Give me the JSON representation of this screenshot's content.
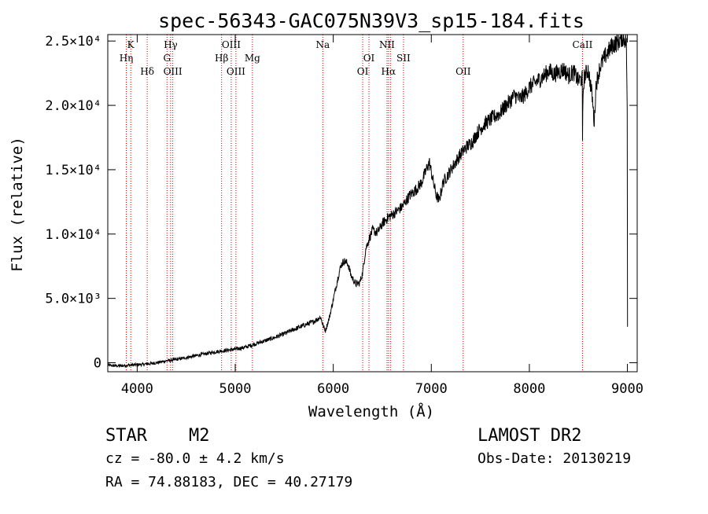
{
  "chart_data": {
    "type": "line",
    "title": "spec-56343-GAC075N39V3_sp15-184.fits",
    "xlabel": "Wavelength (Å)",
    "ylabel": "Flux (relative)",
    "xlim": [
      3700,
      9100
    ],
    "ylim": [
      -700,
      25500
    ],
    "x_ticks": [
      {
        "value": 4000,
        "label": "4000"
      },
      {
        "value": 5000,
        "label": "5000"
      },
      {
        "value": 6000,
        "label": "6000"
      },
      {
        "value": 7000,
        "label": "7000"
      },
      {
        "value": 8000,
        "label": "8000"
      },
      {
        "value": 9000,
        "label": "9000"
      }
    ],
    "y_ticks": [
      {
        "value": 0,
        "label": "0"
      },
      {
        "value": 5000,
        "label": "5.0×10³"
      },
      {
        "value": 10000,
        "label": "1.0×10⁴"
      },
      {
        "value": 15000,
        "label": "1.5×10⁴"
      },
      {
        "value": 20000,
        "label": "2.0×10⁴"
      },
      {
        "value": 25000,
        "label": "2.5×10⁴"
      }
    ],
    "grid": false,
    "series": [
      {
        "color": "#000000",
        "points": [
          [
            3700,
            -200
          ],
          [
            3800,
            -250
          ],
          [
            3900,
            -200
          ],
          [
            4000,
            -150
          ],
          [
            4100,
            -100
          ],
          [
            4200,
            0
          ],
          [
            4300,
            150
          ],
          [
            4400,
            250
          ],
          [
            4500,
            400
          ],
          [
            4600,
            550
          ],
          [
            4700,
            700
          ],
          [
            4800,
            850
          ],
          [
            4900,
            950
          ],
          [
            5000,
            1050
          ],
          [
            5100,
            1200
          ],
          [
            5200,
            1450
          ],
          [
            5300,
            1700
          ],
          [
            5400,
            1950
          ],
          [
            5500,
            2250
          ],
          [
            5600,
            2600
          ],
          [
            5700,
            2900
          ],
          [
            5800,
            3200
          ],
          [
            5870,
            3550
          ],
          [
            5900,
            2800
          ],
          [
            5920,
            2500
          ],
          [
            5960,
            3500
          ],
          [
            6000,
            4900
          ],
          [
            6050,
            6700
          ],
          [
            6080,
            7600
          ],
          [
            6110,
            7900
          ],
          [
            6150,
            7700
          ],
          [
            6180,
            6800
          ],
          [
            6230,
            6100
          ],
          [
            6270,
            6200
          ],
          [
            6300,
            7000
          ],
          [
            6330,
            8800
          ],
          [
            6360,
            9500
          ],
          [
            6400,
            10300
          ],
          [
            6450,
            10100
          ],
          [
            6500,
            10800
          ],
          [
            6560,
            11300
          ],
          [
            6620,
            11600
          ],
          [
            6700,
            12100
          ],
          [
            6780,
            13000
          ],
          [
            6850,
            13500
          ],
          [
            6900,
            14000
          ],
          [
            6940,
            14800
          ],
          [
            6980,
            15600
          ],
          [
            7000,
            14800
          ],
          [
            7050,
            13000
          ],
          [
            7080,
            12600
          ],
          [
            7120,
            14000
          ],
          [
            7200,
            15000
          ],
          [
            7280,
            16000
          ],
          [
            7350,
            16700
          ],
          [
            7420,
            17200
          ],
          [
            7480,
            18000
          ],
          [
            7550,
            18600
          ],
          [
            7620,
            19000
          ],
          [
            7700,
            19400
          ],
          [
            7750,
            19900
          ],
          [
            7800,
            20300
          ],
          [
            7850,
            20800
          ],
          [
            7900,
            20500
          ],
          [
            7950,
            20800
          ],
          [
            8000,
            21400
          ],
          [
            8050,
            21700
          ],
          [
            8100,
            22000
          ],
          [
            8150,
            22300
          ],
          [
            8200,
            22700
          ],
          [
            8250,
            22400
          ],
          [
            8300,
            22600
          ],
          [
            8350,
            22800
          ],
          [
            8400,
            22300
          ],
          [
            8450,
            22600
          ],
          [
            8500,
            21900
          ],
          [
            8540,
            22100
          ],
          [
            8542,
            17000
          ],
          [
            8548,
            21000
          ],
          [
            8560,
            22200
          ],
          [
            8600,
            22800
          ],
          [
            8640,
            20800
          ],
          [
            8662,
            18600
          ],
          [
            8680,
            21600
          ],
          [
            8720,
            23000
          ],
          [
            8780,
            23900
          ],
          [
            8850,
            24700
          ],
          [
            8900,
            24900
          ],
          [
            8950,
            25300
          ],
          [
            8990,
            25000
          ],
          [
            9000,
            17800
          ],
          [
            9001,
            2800
          ]
        ]
      }
    ],
    "lines": [
      {
        "wl": 3889,
        "name": "Hη",
        "row": 1
      },
      {
        "wl": 3934,
        "name": "K",
        "row": 0
      },
      {
        "wl": 4102,
        "name": "Hδ",
        "row": 2
      },
      {
        "wl": 4304,
        "name": "G",
        "row": 1
      },
      {
        "wl": 4341,
        "name": "Hγ",
        "row": 0
      },
      {
        "wl": 4363,
        "name": "OIII",
        "row": 2
      },
      {
        "wl": 4861,
        "name": "Hβ",
        "row": 1
      },
      {
        "wl": 4959,
        "name": "OIII",
        "row": 0
      },
      {
        "wl": 5007,
        "name": "OIII",
        "row": 2
      },
      {
        "wl": 5175,
        "name": "Mg",
        "row": 1
      },
      {
        "wl": 5893,
        "name": "Na",
        "row": 0
      },
      {
        "wl": 6300,
        "name": "OI",
        "row": 2
      },
      {
        "wl": 6364,
        "name": "OI",
        "row": 1
      },
      {
        "wl": 6548,
        "name": "NII",
        "row": 0
      },
      {
        "wl": 6563,
        "name": "Hα",
        "row": 2
      },
      {
        "wl": 6583,
        "name": "",
        "row": 0
      },
      {
        "wl": 6716,
        "name": "SII",
        "row": 1
      },
      {
        "wl": 7325,
        "name": "OII",
        "row": 2
      },
      {
        "wl": 8542,
        "name": "CaII",
        "row": 0
      }
    ],
    "line_color": "#cc0000"
  },
  "info": {
    "object_class": "STAR",
    "subclass": "M2",
    "survey": "LAMOST DR2",
    "cz": "cz = -80.0 ± 4.2 km/s",
    "obs_date": "Obs-Date: 20130219",
    "coords": "RA =  74.88183, DEC =  40.27179"
  }
}
